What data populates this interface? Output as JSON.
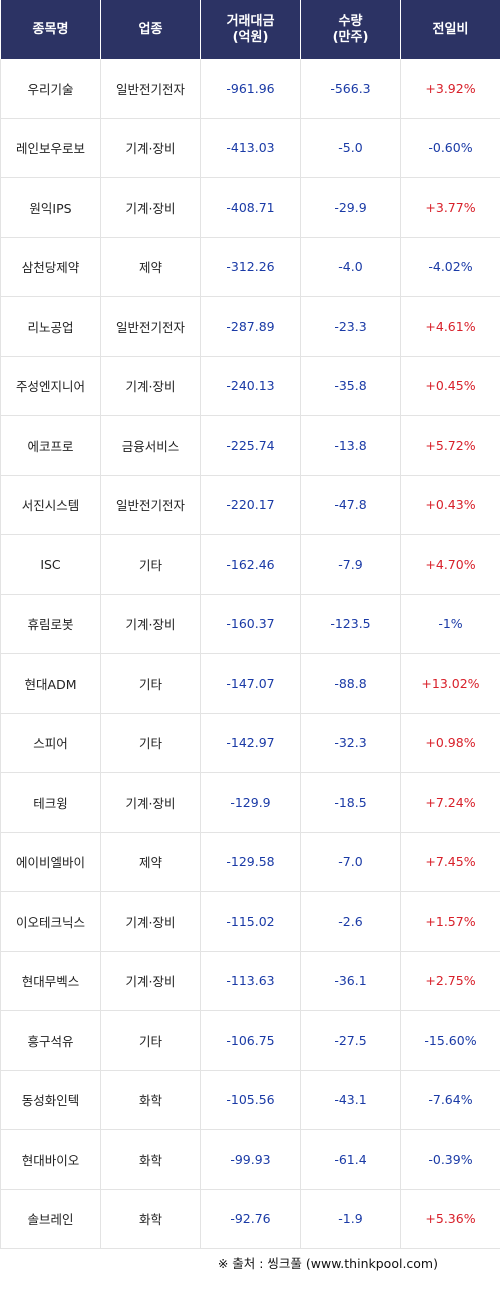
{
  "headers": {
    "name": "종목명",
    "sector": "업종",
    "amount_line1": "거래대금",
    "amount_line2": "(억원)",
    "volume_line1": "수량",
    "volume_line2": "(만주)",
    "change": "전일비"
  },
  "rows": [
    {
      "name": "우리기술",
      "sector": "일반전기전자",
      "amount": "-961.96",
      "volume": "-566.3",
      "change": "+3.92%",
      "dir": "pos"
    },
    {
      "name": "레인보우로보",
      "sector": "기계·장비",
      "amount": "-413.03",
      "volume": "-5.0",
      "change": "-0.60%",
      "dir": "neg"
    },
    {
      "name": "원익IPS",
      "sector": "기계·장비",
      "amount": "-408.71",
      "volume": "-29.9",
      "change": "+3.77%",
      "dir": "pos"
    },
    {
      "name": "삼천당제약",
      "sector": "제약",
      "amount": "-312.26",
      "volume": "-4.0",
      "change": "-4.02%",
      "dir": "neg"
    },
    {
      "name": "리노공업",
      "sector": "일반전기전자",
      "amount": "-287.89",
      "volume": "-23.3",
      "change": "+4.61%",
      "dir": "pos"
    },
    {
      "name": "주성엔지니어",
      "sector": "기계·장비",
      "amount": "-240.13",
      "volume": "-35.8",
      "change": "+0.45%",
      "dir": "pos"
    },
    {
      "name": "에코프로",
      "sector": "금융서비스",
      "amount": "-225.74",
      "volume": "-13.8",
      "change": "+5.72%",
      "dir": "pos"
    },
    {
      "name": "서진시스템",
      "sector": "일반전기전자",
      "amount": "-220.17",
      "volume": "-47.8",
      "change": "+0.43%",
      "dir": "pos"
    },
    {
      "name": "ISC",
      "sector": "기타",
      "amount": "-162.46",
      "volume": "-7.9",
      "change": "+4.70%",
      "dir": "pos"
    },
    {
      "name": "휴림로봇",
      "sector": "기계·장비",
      "amount": "-160.37",
      "volume": "-123.5",
      "change": "-1%",
      "dir": "neg"
    },
    {
      "name": "현대ADM",
      "sector": "기타",
      "amount": "-147.07",
      "volume": "-88.8",
      "change": "+13.02%",
      "dir": "pos"
    },
    {
      "name": "스피어",
      "sector": "기타",
      "amount": "-142.97",
      "volume": "-32.3",
      "change": "+0.98%",
      "dir": "pos"
    },
    {
      "name": "테크윙",
      "sector": "기계·장비",
      "amount": "-129.9",
      "volume": "-18.5",
      "change": "+7.24%",
      "dir": "pos"
    },
    {
      "name": "에이비엘바이",
      "sector": "제약",
      "amount": "-129.58",
      "volume": "-7.0",
      "change": "+7.45%",
      "dir": "pos"
    },
    {
      "name": "이오테크닉스",
      "sector": "기계·장비",
      "amount": "-115.02",
      "volume": "-2.6",
      "change": "+1.57%",
      "dir": "pos"
    },
    {
      "name": "현대무벡스",
      "sector": "기계·장비",
      "amount": "-113.63",
      "volume": "-36.1",
      "change": "+2.75%",
      "dir": "pos"
    },
    {
      "name": "흥구석유",
      "sector": "기타",
      "amount": "-106.75",
      "volume": "-27.5",
      "change": "-15.60%",
      "dir": "neg"
    },
    {
      "name": "동성화인텍",
      "sector": "화학",
      "amount": "-105.56",
      "volume": "-43.1",
      "change": "-7.64%",
      "dir": "neg"
    },
    {
      "name": "현대바이오",
      "sector": "화학",
      "amount": "-99.93",
      "volume": "-61.4",
      "change": "-0.39%",
      "dir": "neg"
    },
    {
      "name": "솔브레인",
      "sector": "화학",
      "amount": "-92.76",
      "volume": "-1.9",
      "change": "+5.36%",
      "dir": "pos"
    }
  ],
  "footer": "※ 출처 : 씽크풀 (www.thinkpool.com)",
  "colors": {
    "header_bg": "#2c3364",
    "negative": "#1a3aa6",
    "positive": "#d8202a"
  }
}
